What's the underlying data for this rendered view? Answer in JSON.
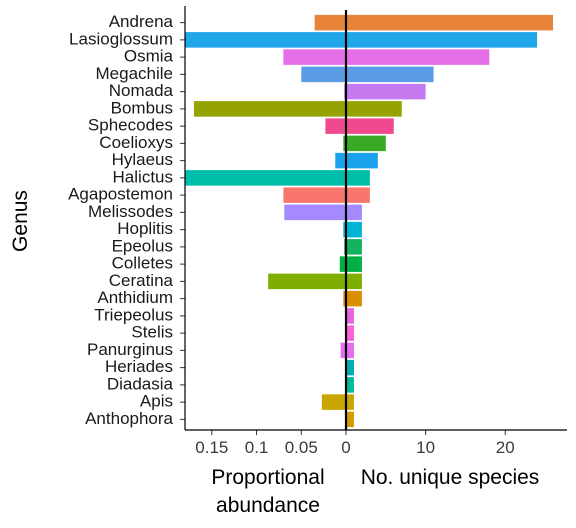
{
  "chart_data": {
    "type": "bar",
    "ylabel": "Genus",
    "left_panel": {
      "xlabel_lines": [
        "Proportional",
        "abundance"
      ],
      "direction": "mirrored",
      "xlim": [
        0,
        0.18
      ],
      "ticks": [
        0.15,
        0.1,
        0.05,
        0
      ],
      "tick_labels": [
        "0.15",
        "0.1",
        "0.05",
        "0"
      ]
    },
    "right_panel": {
      "xlabel": "No. unique species",
      "xlim": [
        0,
        26.5
      ],
      "ticks": [
        0,
        10,
        20
      ],
      "tick_labels": [
        "0",
        "10",
        "20"
      ]
    },
    "categories": [
      "Andrena",
      "Lasioglossum",
      "Osmia",
      "Megachile",
      "Nomada",
      "Bombus",
      "Sphecodes",
      "Coelioxys",
      "Hylaeus",
      "Halictus",
      "Agapostemon",
      "Melissodes",
      "Hoplitis",
      "Epeolus",
      "Colletes",
      "Ceratina",
      "Anthidium",
      "Triepeolus",
      "Stelis",
      "Panurginus",
      "Heriades",
      "Diadasia",
      "Apis",
      "Anthophora"
    ],
    "colors": [
      "#E8833A",
      "#1FA7EA",
      "#E46FE8",
      "#5B9BE6",
      "#C57AF0",
      "#95A300",
      "#F0498F",
      "#3AAA24",
      "#1AA2EC",
      "#00BFA8",
      "#F8766D",
      "#A58AFF",
      "#00B4D4",
      "#12B25E",
      "#00B043",
      "#7EAE00",
      "#DB8E00",
      "#E763E0",
      "#FC61D5",
      "#E76BF3",
      "#00ACB4",
      "#00BC9A",
      "#C9A600",
      "#D59A00"
    ],
    "series": [
      {
        "name": "Proportional abundance",
        "values": [
          0.035,
          0.18,
          0.07,
          0.05,
          0.002,
          0.17,
          0.023,
          0.003,
          0.012,
          0.18,
          0.07,
          0.069,
          0.003,
          0.002,
          0.007,
          0.087,
          0.003,
          0.001,
          0.001,
          0.006,
          0.001,
          0.0005,
          0.027,
          0.001
        ]
      },
      {
        "name": "No. unique species",
        "values": [
          26,
          24,
          18,
          11,
          10,
          7,
          6,
          5,
          4,
          3,
          3,
          2,
          2,
          2,
          2,
          2,
          2,
          1,
          1,
          1,
          1,
          1,
          1,
          1
        ]
      }
    ]
  }
}
